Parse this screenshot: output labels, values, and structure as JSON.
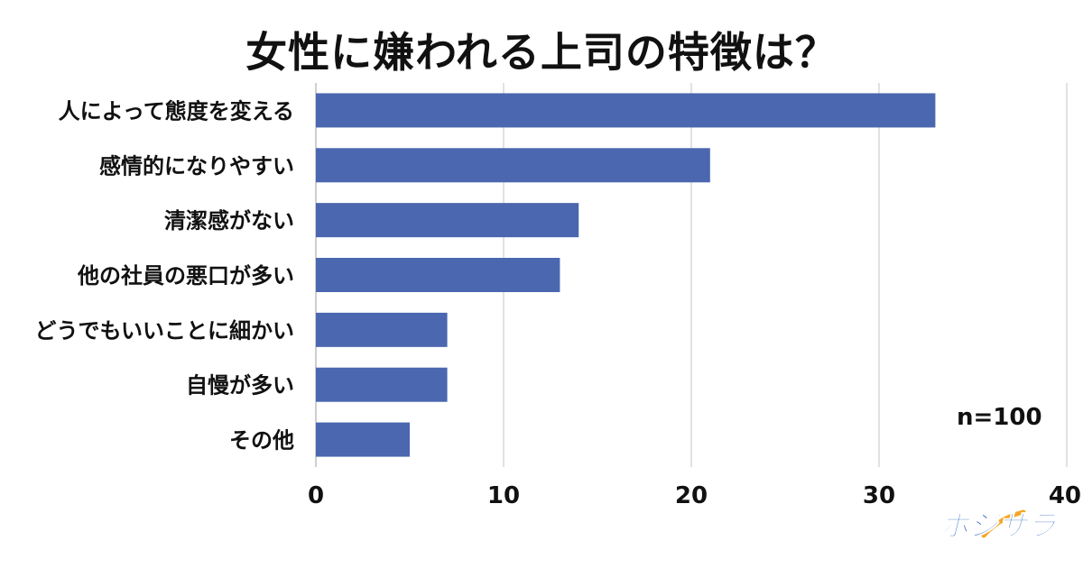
{
  "chart_data": {
    "type": "bar",
    "orientation": "horizontal",
    "title": "女性に嫌われる上司の特徴は？",
    "categories": [
      "人によって態度を変える",
      "感情的になりやすい",
      "清潔感がない",
      "他の社員の悪口が多い",
      "どうでもいいことに細かい",
      "自慢が多い",
      "その他"
    ],
    "values": [
      33,
      21,
      14,
      13,
      7,
      7,
      5
    ],
    "xlim": [
      0,
      40
    ],
    "xticks": [
      "0",
      "10",
      "20",
      "30",
      "40"
    ],
    "grid": true,
    "bar_color": "#4a67b0",
    "annotation": "n=100"
  },
  "logo": {
    "text": "ポジサラ",
    "color": "#1f5fbf",
    "accent": "#f5a623"
  }
}
